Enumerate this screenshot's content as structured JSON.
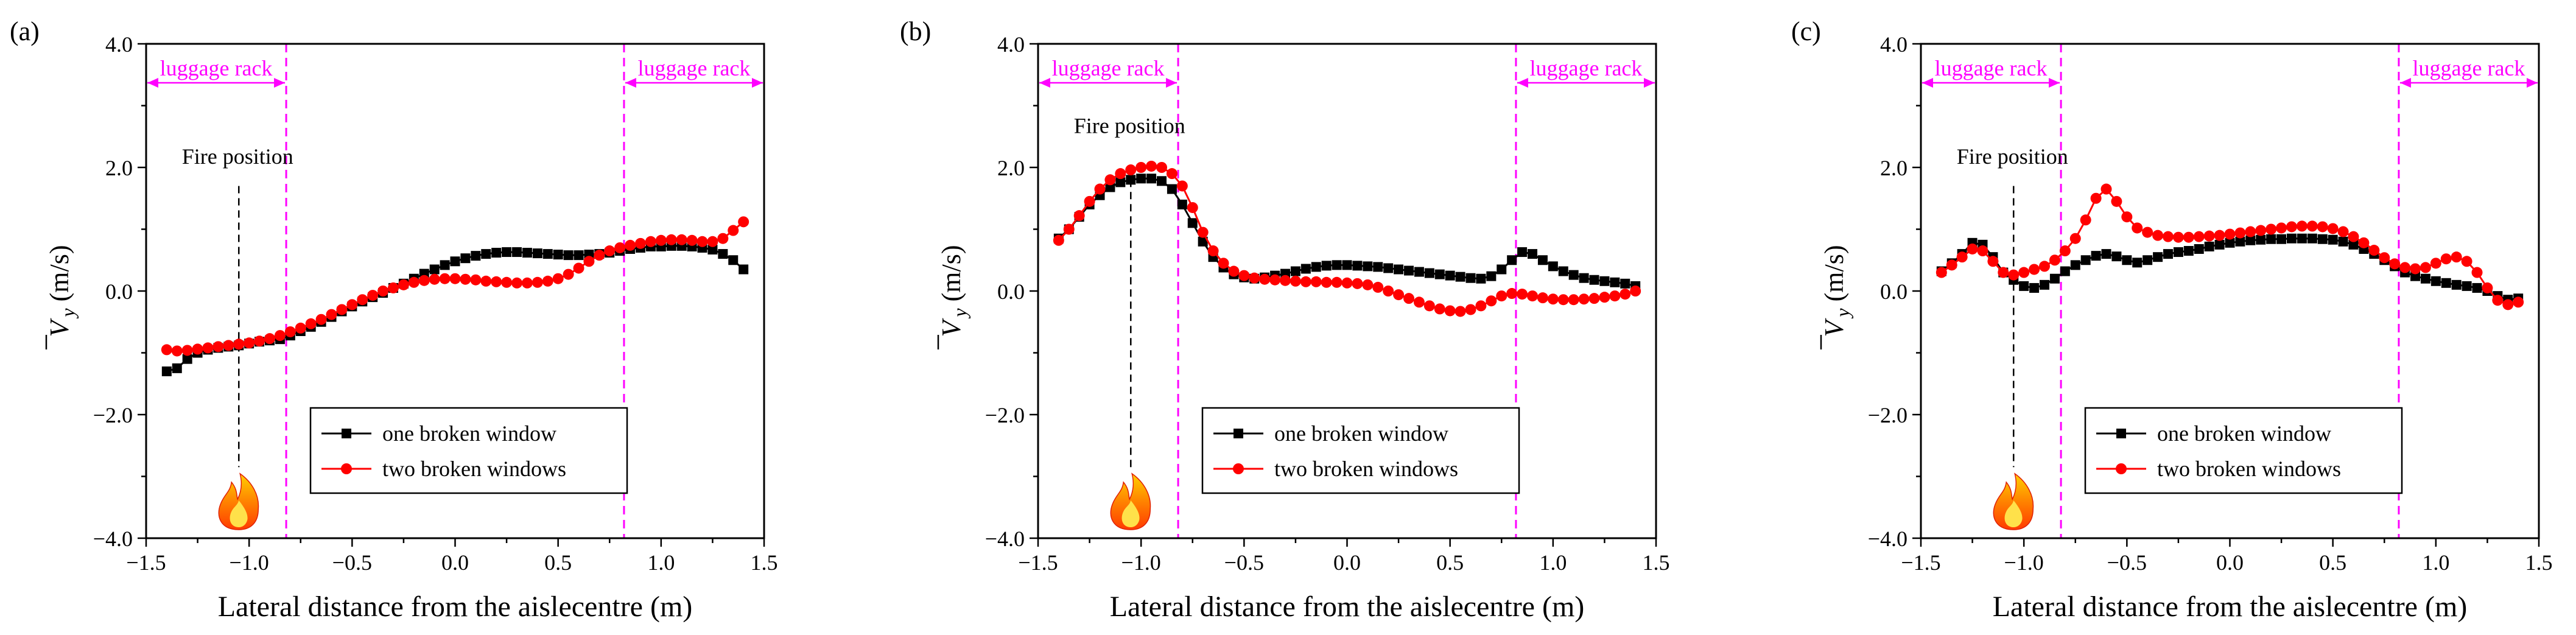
{
  "chart_data": [
    {
      "type": "line",
      "panel_label": "(a)",
      "xlabel": "Lateral distance from the aislecentre (m)",
      "ylabel_main": "V",
      "ylabel_sub": "y",
      "ylabel_unit": " (m/s)",
      "xlim": [
        -1.5,
        1.5
      ],
      "ylim": [
        -4.0,
        4.0
      ],
      "xticks": [
        -1.5,
        -1.0,
        -0.5,
        0.0,
        0.5,
        1.0,
        1.5
      ],
      "yticks": [
        -4.0,
        -2.0,
        0.0,
        2.0,
        4.0
      ],
      "xtick_labels": [
        "−1.5",
        "−1.0",
        "−0.5",
        "0.0",
        "0.5",
        "1.0",
        "1.5"
      ],
      "ytick_labels": [
        "−4.0",
        "−2.0",
        "0.0",
        "2.0",
        "4.0"
      ],
      "luggage_rack_left_x": -0.82,
      "luggage_rack_right_x": 0.82,
      "luggage_rack_label": "luggage rack",
      "fire_x": -1.05,
      "fire_label": "Fire position",
      "fire_label_y": 2.0,
      "fire_line_top_y": 1.7,
      "fire_line_bottom_y": -2.85,
      "legend_position": "lower-right",
      "series": [
        {
          "name": "one broken window",
          "color": "#000000",
          "marker": "square",
          "x": [
            -1.4,
            -1.35,
            -1.3,
            -1.25,
            -1.2,
            -1.15,
            -1.1,
            -1.05,
            -1.0,
            -0.95,
            -0.9,
            -0.85,
            -0.8,
            -0.75,
            -0.7,
            -0.65,
            -0.6,
            -0.55,
            -0.5,
            -0.45,
            -0.4,
            -0.35,
            -0.3,
            -0.25,
            -0.2,
            -0.15,
            -0.1,
            -0.05,
            0.0,
            0.05,
            0.1,
            0.15,
            0.2,
            0.25,
            0.3,
            0.35,
            0.4,
            0.45,
            0.5,
            0.55,
            0.6,
            0.65,
            0.7,
            0.75,
            0.8,
            0.85,
            0.9,
            0.95,
            1.0,
            1.05,
            1.1,
            1.15,
            1.2,
            1.25,
            1.3,
            1.35,
            1.4
          ],
          "y": [
            -1.3,
            -1.25,
            -1.1,
            -1.0,
            -0.95,
            -0.92,
            -0.9,
            -0.88,
            -0.85,
            -0.82,
            -0.8,
            -0.78,
            -0.72,
            -0.65,
            -0.58,
            -0.5,
            -0.42,
            -0.33,
            -0.25,
            -0.17,
            -0.1,
            -0.03,
            0.05,
            0.12,
            0.2,
            0.28,
            0.35,
            0.42,
            0.48,
            0.53,
            0.57,
            0.6,
            0.62,
            0.63,
            0.63,
            0.62,
            0.61,
            0.6,
            0.59,
            0.58,
            0.58,
            0.59,
            0.6,
            0.62,
            0.65,
            0.68,
            0.7,
            0.72,
            0.72,
            0.73,
            0.73,
            0.72,
            0.7,
            0.67,
            0.6,
            0.5,
            0.35
          ]
        },
        {
          "name": "two broken windows",
          "color": "#ff0000",
          "marker": "circle",
          "x": [
            -1.4,
            -1.35,
            -1.3,
            -1.25,
            -1.2,
            -1.15,
            -1.1,
            -1.05,
            -1.0,
            -0.95,
            -0.9,
            -0.85,
            -0.8,
            -0.75,
            -0.7,
            -0.65,
            -0.6,
            -0.55,
            -0.5,
            -0.45,
            -0.4,
            -0.35,
            -0.3,
            -0.25,
            -0.2,
            -0.15,
            -0.1,
            -0.05,
            0.0,
            0.05,
            0.1,
            0.15,
            0.2,
            0.25,
            0.3,
            0.35,
            0.4,
            0.45,
            0.5,
            0.55,
            0.6,
            0.65,
            0.7,
            0.75,
            0.8,
            0.85,
            0.9,
            0.95,
            1.0,
            1.05,
            1.1,
            1.15,
            1.2,
            1.25,
            1.3,
            1.35,
            1.4
          ],
          "y": [
            -0.95,
            -0.97,
            -0.96,
            -0.94,
            -0.92,
            -0.9,
            -0.88,
            -0.86,
            -0.84,
            -0.81,
            -0.77,
            -0.72,
            -0.66,
            -0.6,
            -0.53,
            -0.46,
            -0.38,
            -0.3,
            -0.22,
            -0.14,
            -0.07,
            0.0,
            0.05,
            0.1,
            0.14,
            0.17,
            0.19,
            0.2,
            0.2,
            0.19,
            0.18,
            0.16,
            0.15,
            0.14,
            0.13,
            0.13,
            0.14,
            0.16,
            0.2,
            0.27,
            0.37,
            0.48,
            0.58,
            0.65,
            0.7,
            0.74,
            0.77,
            0.8,
            0.82,
            0.83,
            0.83,
            0.82,
            0.8,
            0.8,
            0.85,
            0.98,
            1.12
          ]
        }
      ]
    },
    {
      "type": "line",
      "panel_label": "(b)",
      "xlabel": "Lateral distance from the aislecentre (m)",
      "ylabel_main": "V",
      "ylabel_sub": "y",
      "ylabel_unit": " (m/s)",
      "xlim": [
        -1.5,
        1.5
      ],
      "ylim": [
        -4.0,
        4.0
      ],
      "xticks": [
        -1.5,
        -1.0,
        -0.5,
        0.0,
        0.5,
        1.0,
        1.5
      ],
      "yticks": [
        -4.0,
        -2.0,
        0.0,
        2.0,
        4.0
      ],
      "xtick_labels": [
        "−1.5",
        "−1.0",
        "−0.5",
        "0.0",
        "0.5",
        "1.0",
        "1.5"
      ],
      "ytick_labels": [
        "−4.0",
        "−2.0",
        "0.0",
        "2.0",
        "4.0"
      ],
      "luggage_rack_left_x": -0.82,
      "luggage_rack_right_x": 0.82,
      "luggage_rack_label": "luggage rack",
      "fire_x": -1.05,
      "fire_label": "Fire position",
      "fire_label_y": 2.5,
      "fire_line_top_y": 1.8,
      "fire_line_bottom_y": -2.85,
      "legend_position": "lower-right",
      "series": [
        {
          "name": "one broken window",
          "color": "#000000",
          "marker": "square",
          "x": [
            -1.4,
            -1.35,
            -1.3,
            -1.25,
            -1.2,
            -1.15,
            -1.1,
            -1.05,
            -1.0,
            -0.95,
            -0.9,
            -0.85,
            -0.8,
            -0.75,
            -0.7,
            -0.65,
            -0.6,
            -0.55,
            -0.5,
            -0.45,
            -0.4,
            -0.35,
            -0.3,
            -0.25,
            -0.2,
            -0.15,
            -0.1,
            -0.05,
            0.0,
            0.05,
            0.1,
            0.15,
            0.2,
            0.25,
            0.3,
            0.35,
            0.4,
            0.45,
            0.5,
            0.55,
            0.6,
            0.65,
            0.7,
            0.75,
            0.8,
            0.85,
            0.9,
            0.95,
            1.0,
            1.05,
            1.1,
            1.15,
            1.2,
            1.25,
            1.3,
            1.35,
            1.4
          ],
          "y": [
            0.85,
            1.0,
            1.2,
            1.4,
            1.55,
            1.68,
            1.76,
            1.8,
            1.82,
            1.82,
            1.78,
            1.65,
            1.4,
            1.1,
            0.8,
            0.55,
            0.38,
            0.27,
            0.22,
            0.2,
            0.22,
            0.25,
            0.28,
            0.32,
            0.36,
            0.39,
            0.41,
            0.42,
            0.42,
            0.41,
            0.4,
            0.39,
            0.37,
            0.35,
            0.33,
            0.31,
            0.29,
            0.27,
            0.25,
            0.23,
            0.21,
            0.2,
            0.24,
            0.35,
            0.5,
            0.63,
            0.6,
            0.5,
            0.4,
            0.32,
            0.26,
            0.21,
            0.18,
            0.16,
            0.14,
            0.12,
            0.08
          ]
        },
        {
          "name": "two broken windows",
          "color": "#ff0000",
          "marker": "circle",
          "x": [
            -1.4,
            -1.35,
            -1.3,
            -1.25,
            -1.2,
            -1.15,
            -1.1,
            -1.05,
            -1.0,
            -0.95,
            -0.9,
            -0.85,
            -0.8,
            -0.75,
            -0.7,
            -0.65,
            -0.6,
            -0.55,
            -0.5,
            -0.45,
            -0.4,
            -0.35,
            -0.3,
            -0.25,
            -0.2,
            -0.15,
            -0.1,
            -0.05,
            0.0,
            0.05,
            0.1,
            0.15,
            0.2,
            0.25,
            0.3,
            0.35,
            0.4,
            0.45,
            0.5,
            0.55,
            0.6,
            0.65,
            0.7,
            0.75,
            0.8,
            0.85,
            0.9,
            0.95,
            1.0,
            1.05,
            1.1,
            1.15,
            1.2,
            1.25,
            1.3,
            1.35,
            1.4
          ],
          "y": [
            0.82,
            1.0,
            1.22,
            1.45,
            1.65,
            1.8,
            1.9,
            1.96,
            2.0,
            2.02,
            2.0,
            1.9,
            1.7,
            1.35,
            0.95,
            0.65,
            0.45,
            0.32,
            0.25,
            0.21,
            0.19,
            0.18,
            0.17,
            0.16,
            0.15,
            0.15,
            0.14,
            0.14,
            0.13,
            0.12,
            0.1,
            0.06,
            0.0,
            -0.06,
            -0.12,
            -0.18,
            -0.24,
            -0.29,
            -0.32,
            -0.33,
            -0.3,
            -0.24,
            -0.16,
            -0.08,
            -0.04,
            -0.05,
            -0.08,
            -0.11,
            -0.13,
            -0.14,
            -0.14,
            -0.13,
            -0.12,
            -0.1,
            -0.08,
            -0.05,
            0.0
          ]
        }
      ]
    },
    {
      "type": "line",
      "panel_label": "(c)",
      "xlabel": "Lateral distance from the aislecentre (m)",
      "ylabel_main": "V",
      "ylabel_sub": "y",
      "ylabel_unit": " (m/s)",
      "xlim": [
        -1.5,
        1.5
      ],
      "ylim": [
        -4.0,
        4.0
      ],
      "xticks": [
        -1.5,
        -1.0,
        -0.5,
        0.0,
        0.5,
        1.0,
        1.5
      ],
      "yticks": [
        -4.0,
        -2.0,
        0.0,
        2.0,
        4.0
      ],
      "xtick_labels": [
        "−1.5",
        "−1.0",
        "−0.5",
        "0.0",
        "0.5",
        "1.0",
        "1.5"
      ],
      "ytick_labels": [
        "−4.0",
        "−2.0",
        "0.0",
        "2.0",
        "4.0"
      ],
      "luggage_rack_left_x": -0.82,
      "luggage_rack_right_x": 0.82,
      "luggage_rack_label": "luggage rack",
      "fire_x": -1.05,
      "fire_label": "Fire position",
      "fire_label_y": 2.0,
      "fire_line_top_y": 1.7,
      "fire_line_bottom_y": -2.85,
      "legend_position": "lower-right",
      "series": [
        {
          "name": "one broken window",
          "color": "#000000",
          "marker": "square",
          "x": [
            -1.4,
            -1.35,
            -1.3,
            -1.25,
            -1.2,
            -1.15,
            -1.1,
            -1.05,
            -1.0,
            -0.95,
            -0.9,
            -0.85,
            -0.8,
            -0.75,
            -0.7,
            -0.65,
            -0.6,
            -0.55,
            -0.5,
            -0.45,
            -0.4,
            -0.35,
            -0.3,
            -0.25,
            -0.2,
            -0.15,
            -0.1,
            -0.05,
            0.0,
            0.05,
            0.1,
            0.15,
            0.2,
            0.25,
            0.3,
            0.35,
            0.4,
            0.45,
            0.5,
            0.55,
            0.6,
            0.65,
            0.7,
            0.75,
            0.8,
            0.85,
            0.9,
            0.95,
            1.0,
            1.05,
            1.1,
            1.15,
            1.2,
            1.25,
            1.3,
            1.35,
            1.4
          ],
          "y": [
            0.32,
            0.45,
            0.6,
            0.78,
            0.75,
            0.55,
            0.3,
            0.18,
            0.08,
            0.05,
            0.1,
            0.2,
            0.32,
            0.42,
            0.5,
            0.57,
            0.6,
            0.56,
            0.5,
            0.46,
            0.5,
            0.55,
            0.6,
            0.63,
            0.65,
            0.68,
            0.72,
            0.75,
            0.78,
            0.8,
            0.82,
            0.83,
            0.84,
            0.84,
            0.85,
            0.85,
            0.85,
            0.84,
            0.83,
            0.8,
            0.75,
            0.68,
            0.6,
            0.5,
            0.4,
            0.3,
            0.24,
            0.2,
            0.16,
            0.13,
            0.1,
            0.08,
            0.05,
            0.0,
            -0.08,
            -0.14,
            -0.12
          ]
        },
        {
          "name": "two broken windows",
          "color": "#ff0000",
          "marker": "circle",
          "x": [
            -1.4,
            -1.35,
            -1.3,
            -1.25,
            -1.2,
            -1.15,
            -1.1,
            -1.05,
            -1.0,
            -0.95,
            -0.9,
            -0.85,
            -0.8,
            -0.75,
            -0.7,
            -0.65,
            -0.6,
            -0.55,
            -0.5,
            -0.45,
            -0.4,
            -0.35,
            -0.3,
            -0.25,
            -0.2,
            -0.15,
            -0.1,
            -0.05,
            0.0,
            0.05,
            0.1,
            0.15,
            0.2,
            0.25,
            0.3,
            0.35,
            0.4,
            0.45,
            0.5,
            0.55,
            0.6,
            0.65,
            0.7,
            0.75,
            0.8,
            0.85,
            0.9,
            0.95,
            1.0,
            1.05,
            1.1,
            1.15,
            1.2,
            1.25,
            1.3,
            1.35,
            1.4
          ],
          "y": [
            0.3,
            0.42,
            0.55,
            0.68,
            0.65,
            0.48,
            0.3,
            0.26,
            0.3,
            0.35,
            0.4,
            0.5,
            0.65,
            0.85,
            1.15,
            1.5,
            1.65,
            1.45,
            1.2,
            1.02,
            0.95,
            0.9,
            0.88,
            0.87,
            0.87,
            0.88,
            0.89,
            0.9,
            0.92,
            0.94,
            0.96,
            0.98,
            1.0,
            1.02,
            1.04,
            1.05,
            1.05,
            1.04,
            1.01,
            0.96,
            0.88,
            0.78,
            0.66,
            0.54,
            0.44,
            0.38,
            0.36,
            0.38,
            0.45,
            0.52,
            0.55,
            0.48,
            0.3,
            0.05,
            -0.15,
            -0.22,
            -0.18
          ]
        }
      ]
    }
  ]
}
